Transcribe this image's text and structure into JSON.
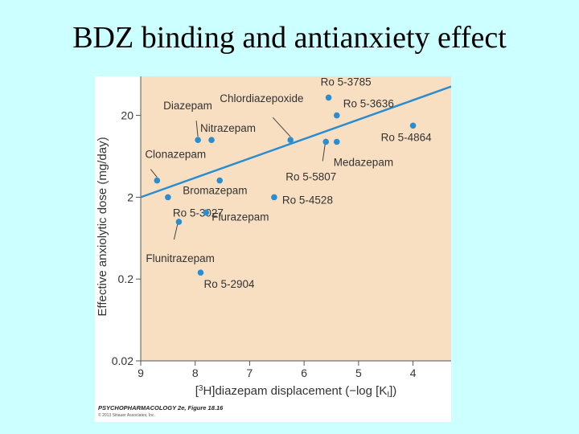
{
  "slide": {
    "title": "BDZ binding and antianxiety effect"
  },
  "figure": {
    "caption": "PSYCHOPHARMACOLOGY 2e, Figure 18.16",
    "copyright": "© 2013 Sinauer Associates, Inc.",
    "colors": {
      "panel": "#f8dfc2",
      "series": "#2a8dcf",
      "text": "#333333"
    }
  },
  "chart_data": {
    "type": "scatter",
    "title": "",
    "xlabel": "[3H]diazepam displacement (−log [KI])",
    "ylabel": "Effective anxiolytic dose (mg/day)",
    "x_reversed": true,
    "xlim": [
      9,
      3.3
    ],
    "ylim": [
      0.02,
      60
    ],
    "y_scale": "log",
    "x_ticks": [
      9,
      8,
      7,
      6,
      5,
      4
    ],
    "y_ticks": [
      0.02,
      0.2,
      2,
      20
    ],
    "y_tick_labels": [
      "0.02",
      "0.2",
      "2",
      "20"
    ],
    "points": [
      {
        "name": "Ro 5-3785",
        "x": 5.55,
        "y": 33
      },
      {
        "name": "Ro 5-3636",
        "x": 5.4,
        "y": 20
      },
      {
        "name": "Ro 5-4864",
        "x": 4.0,
        "y": 15
      },
      {
        "name": "Chlordiazepoxide",
        "x": 6.25,
        "y": 10
      },
      {
        "name": "Ro 5-5807",
        "x": 5.6,
        "y": 9.5
      },
      {
        "name": "Medazepam",
        "x": 5.4,
        "y": 9.5
      },
      {
        "name": "Diazepam",
        "x": 7.95,
        "y": 10
      },
      {
        "name": "Nitrazepam",
        "x": 7.7,
        "y": 10
      },
      {
        "name": "Clonazepam",
        "x": 8.7,
        "y": 3.2
      },
      {
        "name": "Bromazepam",
        "x": 7.55,
        "y": 3.2
      },
      {
        "name": "Ro 5-4528",
        "x": 6.55,
        "y": 2
      },
      {
        "name": "Ro 5-3027",
        "x": 8.5,
        "y": 2
      },
      {
        "name": "Flurazepam",
        "x": 7.8,
        "y": 1.3
      },
      {
        "name": "Flunitrazepam",
        "x": 8.3,
        "y": 1.0
      },
      {
        "name": "Ro 5-2904",
        "x": 7.9,
        "y": 0.24
      }
    ],
    "fit_line": {
      "x": [
        9,
        3.3
      ],
      "y": [
        2,
        45
      ]
    }
  }
}
